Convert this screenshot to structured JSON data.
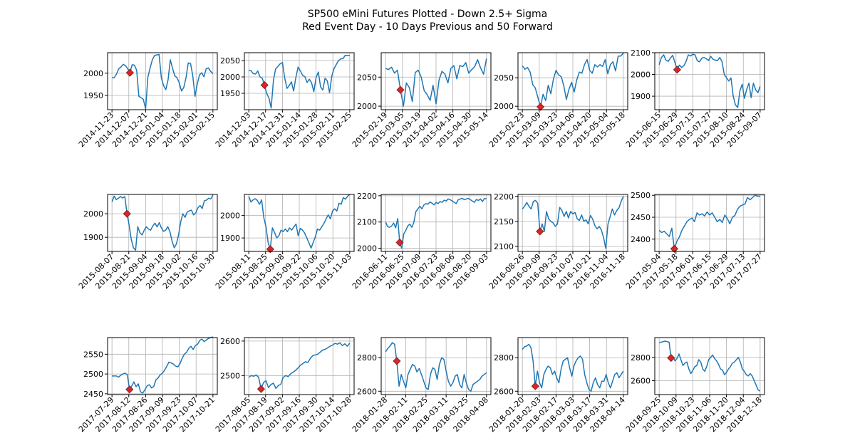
{
  "figure": {
    "title_line1": "SP500 eMini Futures Plotted - Down 2.5+ Sigma",
    "title_line2": "Red Event Day - 10 Days Previous and 50 Forward"
  },
  "colors": {
    "line": "#1f77b4",
    "event_marker": "#d62728",
    "event_edge": "#7a1a1a",
    "grid": "#b0b0b0"
  },
  "chart_data": [
    {
      "type": "line",
      "event": "2014-12-16",
      "event_value": 2001,
      "ylim": [
        1918,
        2046
      ],
      "yticks": [
        1950,
        2000
      ],
      "xticks": [
        "2014-11-23",
        "2014-12-07",
        "2014-12-21",
        "2015-01-04",
        "2015-01-18",
        "2015-02-01",
        "2015-02-15"
      ],
      "values": [
        1990,
        1990,
        1998,
        2010,
        2014,
        2020,
        2017,
        2010,
        2001,
        2019,
        2018,
        2007,
        1948,
        1945,
        1941,
        1920,
        1991,
        2012,
        2030,
        2040,
        2041,
        2042,
        1990,
        1972,
        1963,
        1985,
        2030,
        2011,
        1994,
        1990,
        1978,
        1960,
        1968,
        1990,
        2023,
        2022,
        1995,
        1948,
        1975,
        1996,
        2001,
        1992,
        2010,
        2012,
        2004,
        1999
      ]
    },
    {
      "type": "line",
      "event": "2014-12-12",
      "event_value": 1975,
      "ylim": [
        1900,
        2074
      ],
      "yticks": [
        1950,
        2000,
        2050
      ],
      "xticks": [
        "2014-12-03",
        "2014-12-17",
        "2014-12-31",
        "2015-01-14",
        "2015-01-28",
        "2015-02-11",
        "2015-02-25"
      ],
      "values": [
        2020,
        2019,
        2010,
        2009,
        2018,
        2000,
        1996,
        1975,
        1950,
        1935,
        1905,
        1990,
        2025,
        2032,
        2040,
        2044,
        1998,
        1965,
        1973,
        1985,
        1957,
        1999,
        2030,
        2018,
        2005,
        2001,
        1983,
        1993,
        1982,
        1955,
        1998,
        2015,
        1970,
        1960,
        1996,
        1988,
        1952,
        2003,
        2025,
        2038,
        2050,
        2055,
        2056,
        2066,
        2066,
        2066
      ]
    },
    {
      "type": "line",
      "event": "2015-03-06",
      "event_value": 2028,
      "ylim": [
        1994,
        2092
      ],
      "yticks": [
        2000,
        2050
      ],
      "xticks": [
        "2015-02-19",
        "2015-03-05",
        "2015-03-19",
        "2015-04-02",
        "2015-04-16",
        "2015-04-30",
        "2015-05-14"
      ],
      "values": [
        2065,
        2063,
        2067,
        2057,
        2062,
        2028,
        2000,
        2040,
        2032,
        2008,
        2058,
        2062,
        2050,
        2027,
        2020,
        2010,
        2036,
        2004,
        2045,
        2060,
        2055,
        2040,
        2065,
        2070,
        2047,
        2070,
        2068,
        2075,
        2057,
        2063,
        2068,
        2080,
        2066,
        2055,
        2082
      ]
    },
    {
      "type": "line",
      "event": "2015-03-06",
      "event_value": 1999,
      "ylim": [
        1994,
        2094
      ],
      "yticks": [
        2000,
        2050
      ],
      "xticks": [
        "2015-02-23",
        "2015-03-09",
        "2015-03-23",
        "2015-04-06",
        "2015-04-20",
        "2015-05-04",
        "2015-05-18"
      ],
      "values": [
        2071,
        2065,
        2068,
        2060,
        2038,
        2032,
        2015,
        1999,
        2021,
        2010,
        2037,
        2022,
        2048,
        2063,
        2055,
        2052,
        2036,
        2012,
        2030,
        2042,
        2025,
        2046,
        2060,
        2058,
        2073,
        2082,
        2063,
        2058,
        2073,
        2069,
        2073,
        2070,
        2082,
        2057,
        2073,
        2078,
        2062,
        2088,
        2088,
        2093
      ]
    },
    {
      "type": "line",
      "event": "2015-06-29",
      "event_value": 2022,
      "ylim": [
        1838,
        2100
      ],
      "yticks": [
        1900,
        2000,
        2100
      ],
      "xticks": [
        "2015-06-15",
        "2015-06-29",
        "2015-07-13",
        "2015-07-27",
        "2015-08-10",
        "2015-08-24",
        "2015-09-07"
      ],
      "values": [
        2045,
        2078,
        2090,
        2066,
        2060,
        2075,
        2088,
        2056,
        2022,
        2043,
        2032,
        2040,
        2060,
        2090,
        2085,
        2093,
        2090,
        2063,
        2058,
        2075,
        2078,
        2072,
        2064,
        2083,
        2070,
        2066,
        2064,
        2078,
        2060,
        2000,
        1985,
        1970,
        1984,
        1900,
        1860,
        1848,
        1925,
        1955,
        1890,
        1930,
        1960,
        1893,
        1960,
        1930,
        1916,
        1945
      ]
    },
    {
      "type": "line",
      "event": "2015-08-21",
      "event_value": 2000,
      "ylim": [
        1840,
        2082
      ],
      "yticks": [
        1900,
        2000
      ],
      "xticks": [
        "2015-08-07",
        "2015-08-21",
        "2015-09-04",
        "2015-09-18",
        "2015-10-02",
        "2015-10-16",
        "2015-10-30"
      ],
      "values": [
        2050,
        2075,
        2060,
        2066,
        2073,
        2067,
        2073,
        2000,
        1950,
        1890,
        1855,
        1845,
        1945,
        1920,
        1910,
        1930,
        1945,
        1935,
        1930,
        1948,
        1960,
        1944,
        1962,
        1940,
        1925,
        1930,
        1945,
        1923,
        1882,
        1855,
        1872,
        1910,
        1965,
        2000,
        1985,
        2007,
        2012,
        2015,
        1995,
        2003,
        2025,
        2035,
        2022,
        2055,
        2058,
        2066,
        2063,
        2080
      ]
    },
    {
      "type": "line",
      "event": "2015-08-24",
      "event_value": 1850,
      "ylim": [
        1840,
        2094
      ],
      "yticks": [
        1900,
        2000
      ],
      "xticks": [
        "2015-08-11",
        "2015-08-25",
        "2015-09-08",
        "2015-09-22",
        "2015-10-06",
        "2015-10-20",
        "2015-11-03"
      ],
      "values": [
        2085,
        2060,
        2070,
        2075,
        2067,
        2050,
        2070,
        1990,
        1950,
        1880,
        1850,
        1945,
        1925,
        1900,
        1910,
        1935,
        1928,
        1940,
        1928,
        1945,
        1935,
        1950,
        1962,
        1910,
        1943,
        1935,
        1922,
        1900,
        1878,
        1855,
        1880,
        1905,
        1940,
        1935,
        1950,
        1965,
        1985,
        2003,
        1985,
        2020,
        2030,
        2020,
        2055,
        2050,
        2080,
        2073,
        2085,
        2095
      ]
    },
    {
      "type": "line",
      "event": "2016-06-24",
      "event_value": 2022,
      "ylim": [
        1988,
        2205
      ],
      "yticks": [
        2000,
        2100,
        2200
      ],
      "xticks": [
        "2016-06-11",
        "2016-06-25",
        "2016-07-09",
        "2016-07-23",
        "2016-08-06",
        "2016-08-20",
        "2016-09-03"
      ],
      "values": [
        2100,
        2082,
        2080,
        2085,
        2096,
        2078,
        2113,
        2022,
        2000,
        2055,
        2068,
        2085,
        2092,
        2080,
        2098,
        2140,
        2150,
        2160,
        2150,
        2165,
        2170,
        2168,
        2176,
        2172,
        2165,
        2175,
        2170,
        2178,
        2175,
        2183,
        2180,
        2188,
        2185,
        2180,
        2175,
        2170,
        2185,
        2188,
        2190,
        2185,
        2188,
        2190,
        2185,
        2180,
        2175,
        2186,
        2182,
        2188,
        2178,
        2190,
        2188
      ]
    },
    {
      "type": "line",
      "event": "2016-09-09",
      "event_value": 2130,
      "ylim": [
        2090,
        2204
      ],
      "yticks": [
        2100,
        2150,
        2200
      ],
      "xticks": [
        "2016-08-26",
        "2016-09-09",
        "2016-09-23",
        "2016-10-07",
        "2016-10-21",
        "2016-11-04",
        "2016-11-18"
      ],
      "values": [
        2175,
        2180,
        2188,
        2180,
        2175,
        2190,
        2192,
        2186,
        2130,
        2145,
        2130,
        2170,
        2155,
        2150,
        2147,
        2140,
        2145,
        2178,
        2172,
        2160,
        2170,
        2157,
        2170,
        2165,
        2168,
        2155,
        2152,
        2163,
        2150,
        2153,
        2145,
        2162,
        2155,
        2142,
        2135,
        2140,
        2133,
        2118,
        2096,
        2145,
        2160,
        2175,
        2163,
        2172,
        2177,
        2190,
        2200
      ]
    },
    {
      "type": "line",
      "event": "2017-05-17",
      "event_value": 2378,
      "ylim": [
        2372,
        2502
      ],
      "yticks": [
        2400,
        2450,
        2500
      ],
      "xticks": [
        "2017-05-04",
        "2017-05-18",
        "2017-06-01",
        "2017-06-15",
        "2017-06-29",
        "2017-07-13",
        "2017-07-27"
      ],
      "values": [
        2420,
        2415,
        2418,
        2412,
        2406,
        2425,
        2378,
        2395,
        2405,
        2420,
        2430,
        2440,
        2445,
        2448,
        2440,
        2460,
        2455,
        2458,
        2453,
        2462,
        2455,
        2460,
        2450,
        2440,
        2445,
        2438,
        2455,
        2447,
        2435,
        2450,
        2454,
        2468,
        2475,
        2478,
        2480,
        2495,
        2490,
        2495,
        2500,
        2498,
        2498
      ]
    },
    {
      "type": "line",
      "event": "2017-08-10",
      "event_value": 2461,
      "ylim": [
        2448,
        2592
      ],
      "yticks": [
        2450,
        2500,
        2550
      ],
      "xticks": [
        "2017-07-29",
        "2017-08-12",
        "2017-08-26",
        "2017-09-09",
        "2017-09-23",
        "2017-10-07",
        "2017-10-21"
      ],
      "values": [
        2495,
        2495,
        2495,
        2492,
        2497,
        2500,
        2502,
        2498,
        2461,
        2470,
        2480,
        2468,
        2475,
        2455,
        2452,
        2460,
        2470,
        2473,
        2465,
        2468,
        2485,
        2490,
        2498,
        2502,
        2510,
        2520,
        2530,
        2528,
        2525,
        2520,
        2518,
        2526,
        2540,
        2550,
        2555,
        2565,
        2570,
        2562,
        2572,
        2575,
        2585,
        2588,
        2582,
        2586,
        2590,
        2592,
        2594
      ]
    },
    {
      "type": "line",
      "event": "2017-08-10",
      "event_value": 2461,
      "ylim": [
        2445,
        2610
      ],
      "yticks": [
        2500,
        2600
      ],
      "xticks": [
        "2017-08-05",
        "2017-08-19",
        "2017-09-02",
        "2017-09-16",
        "2017-09-30",
        "2017-10-14",
        "2017-10-28"
      ],
      "values": [
        2495,
        2500,
        2498,
        2502,
        2495,
        2461,
        2480,
        2485,
        2465,
        2474,
        2478,
        2463,
        2471,
        2475,
        2495,
        2500,
        2497,
        2505,
        2510,
        2515,
        2522,
        2530,
        2535,
        2540,
        2538,
        2550,
        2558,
        2560,
        2562,
        2568,
        2574,
        2576,
        2580,
        2585,
        2588,
        2593,
        2591,
        2595,
        2587,
        2592,
        2585,
        2594
      ]
    },
    {
      "type": "line",
      "event": "2018-02-02",
      "event_value": 2780,
      "ylim": [
        2580,
        2920
      ],
      "yticks": [
        2600,
        2800
      ],
      "xticks": [
        "2018-01-28",
        "2018-02-11",
        "2018-02-25",
        "2018-03-11",
        "2018-03-25",
        "2018-04-08"
      ],
      "values": [
        2835,
        2855,
        2870,
        2890,
        2880,
        2780,
        2630,
        2700,
        2660,
        2620,
        2700,
        2730,
        2760,
        2750,
        2715,
        2735,
        2700,
        2660,
        2620,
        2610,
        2700,
        2740,
        2730,
        2670,
        2760,
        2800,
        2790,
        2720,
        2660,
        2630,
        2650,
        2690,
        2700,
        2640,
        2620,
        2700,
        2650,
        2610,
        2600,
        2640,
        2650,
        2660,
        2670,
        2690,
        2700,
        2710
      ]
    },
    {
      "type": "line",
      "event": "2018-02-05",
      "event_value": 2630,
      "ylim": [
        2580,
        2920
      ],
      "yticks": [
        2600,
        2800
      ],
      "xticks": [
        "2018-01-20",
        "2018-02-03",
        "2018-02-17",
        "2018-03-03",
        "2018-03-17",
        "2018-03-31",
        "2018-04-14"
      ],
      "values": [
        2850,
        2865,
        2870,
        2880,
        2860,
        2780,
        2630,
        2720,
        2650,
        2620,
        2700,
        2730,
        2750,
        2740,
        2700,
        2720,
        2680,
        2650,
        2730,
        2780,
        2790,
        2800,
        2740,
        2690,
        2750,
        2780,
        2800,
        2810,
        2790,
        2700,
        2650,
        2610,
        2600,
        2650,
        2680,
        2640,
        2620,
        2660,
        2660,
        2700,
        2650,
        2620,
        2660,
        2700,
        2710,
        2680,
        2700,
        2720
      ]
    },
    {
      "type": "line",
      "event": "2018-10-10",
      "event_value": 2795,
      "ylim": [
        2480,
        2970
      ],
      "yticks": [
        2600,
        2800
      ],
      "xticks": [
        "2018-09-25",
        "2018-10-09",
        "2018-10-23",
        "2018-11-06",
        "2018-11-20",
        "2018-12-04",
        "2018-12-18"
      ],
      "values": [
        2925,
        2930,
        2935,
        2940,
        2935,
        2930,
        2795,
        2805,
        2770,
        2790,
        2830,
        2780,
        2730,
        2750,
        2760,
        2700,
        2660,
        2690,
        2720,
        2730,
        2780,
        2760,
        2700,
        2680,
        2720,
        2780,
        2800,
        2820,
        2790,
        2770,
        2740,
        2700,
        2690,
        2650,
        2670,
        2700,
        2720,
        2750,
        2760,
        2780,
        2800,
        2760,
        2700,
        2680,
        2650,
        2640,
        2660,
        2640,
        2600,
        2560,
        2520,
        2510
      ]
    }
  ]
}
